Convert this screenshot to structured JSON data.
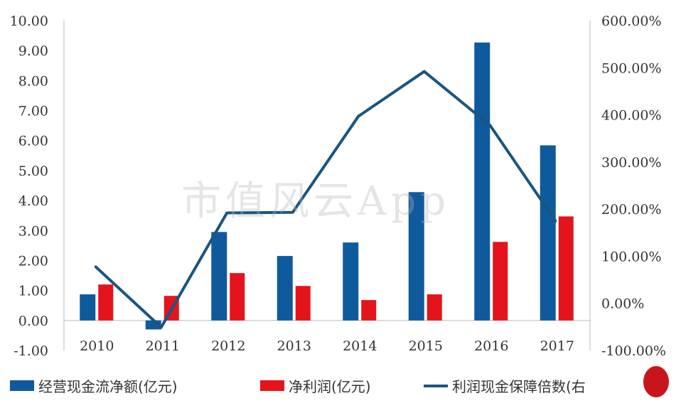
{
  "chart_data": {
    "type": "bar",
    "categories": [
      "2010",
      "2011",
      "2012",
      "2013",
      "2014",
      "2015",
      "2016",
      "2017"
    ],
    "series": [
      {
        "name": "经营现金流净额(亿元)",
        "type": "bar",
        "axis": "left",
        "color": "#0f5a9c",
        "values": [
          0.87,
          -0.3,
          2.95,
          2.15,
          2.6,
          4.28,
          9.27,
          5.84
        ]
      },
      {
        "name": "净利润(亿元)",
        "type": "bar",
        "axis": "left",
        "color": "#e3141b",
        "values": [
          1.2,
          0.82,
          1.58,
          1.15,
          0.68,
          0.87,
          2.62,
          3.47
        ]
      },
      {
        "name": "利润现金保障倍数(右",
        "type": "line",
        "axis": "right",
        "color": "#1a5580",
        "values": [
          78,
          -51,
          192,
          193,
          397,
          492,
          378,
          174
        ]
      }
    ],
    "left_axis": {
      "ylim": [
        -1,
        10
      ],
      "ticks": [
        "-1.00",
        "0.00",
        "1.00",
        "2.00",
        "3.00",
        "4.00",
        "5.00",
        "6.00",
        "7.00",
        "8.00",
        "9.00",
        "10.00"
      ]
    },
    "right_axis": {
      "ylim": [
        -100,
        600
      ],
      "ticks": [
        "-100.00%",
        "0.00%",
        "100.00%",
        "200.00%",
        "300.00%",
        "400.00%",
        "500.00%",
        "600.00%"
      ]
    },
    "grid": false,
    "legend_position": "bottom",
    "watermark": "市值风云App"
  }
}
